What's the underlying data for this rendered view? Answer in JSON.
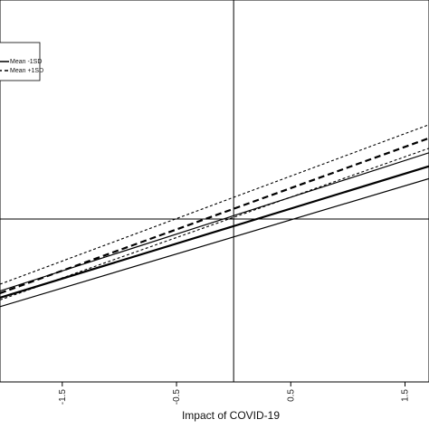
{
  "chart_data": {
    "type": "line",
    "xlabel": "Impact of COVID-19",
    "ylabel": "",
    "title": "",
    "xlim": [
      -2.045,
      1.71
    ],
    "ylim": [
      -1.45,
      1.95
    ],
    "x_ticks": [
      -1.5,
      -0.5,
      0.5,
      1.5
    ],
    "x_tick_labels": [
      "-1.5",
      "-0.5",
      "0.5",
      "1.5"
    ],
    "reference_lines": {
      "x": 0,
      "y": 0
    },
    "legend": {
      "placement": "top-left",
      "entries": [
        {
          "label": "Mean -1SD",
          "style": "solid"
        },
        {
          "label": "Mean +1SD",
          "style": "dashed"
        }
      ]
    },
    "series": [
      {
        "name": "Mean -1SD",
        "role": "estimate",
        "style": "solid-bold",
        "x": [
          -2.045,
          1.71
        ],
        "y": [
          -0.7,
          0.47
        ]
      },
      {
        "role": "band-upper",
        "style": "solid",
        "x": [
          -2.045,
          1.71
        ],
        "y": [
          -0.64,
          0.59
        ]
      },
      {
        "role": "band-lower",
        "style": "solid",
        "x": [
          -2.045,
          1.71
        ],
        "y": [
          -0.78,
          0.36
        ]
      },
      {
        "name": "Mean +1SD",
        "role": "estimate",
        "style": "dashed-bold",
        "x": [
          -2.045,
          1.71
        ],
        "y": [
          -0.66,
          0.72
        ]
      },
      {
        "role": "band-upper",
        "style": "dashed",
        "x": [
          -2.045,
          1.71
        ],
        "y": [
          -0.58,
          0.84
        ]
      },
      {
        "role": "band-lower",
        "style": "dashed",
        "x": [
          -2.045,
          1.71
        ],
        "y": [
          -0.72,
          0.63
        ]
      }
    ]
  }
}
